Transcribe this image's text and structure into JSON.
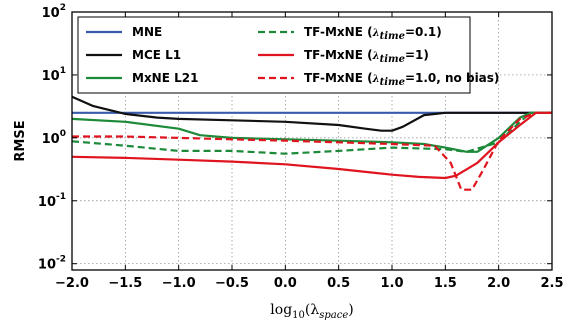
{
  "chart_data": {
    "type": "line",
    "xlabel": "log10(λspace)",
    "xlabel_parts": {
      "pre": "log",
      "sub": "10",
      "mid": "(λ",
      "sub2": "space",
      "post": ")"
    },
    "ylabel": "RMSE",
    "xlim": [
      -2.0,
      2.5
    ],
    "ylim_log10": [
      -2.1,
      2.0
    ],
    "yscale": "log",
    "grid": true,
    "legend_position": "top",
    "x_ticks": [
      "−2.0",
      "−1.5",
      "−1.0",
      "−0.5",
      "0.0",
      "0.5",
      "1.0",
      "1.5",
      "2.0",
      "2.5"
    ],
    "x_tick_values": [
      -2.0,
      -1.5,
      -1.0,
      -0.5,
      0.0,
      0.5,
      1.0,
      1.5,
      2.0,
      2.5
    ],
    "y_ticks": [
      {
        "base": "10",
        "exp": "2",
        "value": 2
      },
      {
        "base": "10",
        "exp": "1",
        "value": 1
      },
      {
        "base": "10",
        "exp": "0",
        "value": 0
      },
      {
        "base": "10",
        "exp": "-1",
        "value": -1
      },
      {
        "base": "10",
        "exp": "-2",
        "value": -2
      }
    ],
    "series": [
      {
        "name": "MNE",
        "label_parts": {
          "pre": "MNE",
          "sub": "",
          "post": ""
        },
        "color": "#3a5ba9",
        "dash": false,
        "x": [
          -2.0,
          -1.5,
          -1.0,
          -0.5,
          0.0,
          0.5,
          1.0,
          1.5,
          2.0,
          2.3,
          2.5
        ],
        "y": [
          2.5,
          2.5,
          2.5,
          2.5,
          2.5,
          2.5,
          2.5,
          2.5,
          2.5,
          2.5,
          2.5
        ]
      },
      {
        "name": "MCE L1",
        "label_parts": {
          "pre": "MCE L1",
          "sub": "",
          "post": ""
        },
        "color": "#111111",
        "dash": false,
        "x": [
          -2.0,
          -1.8,
          -1.5,
          -1.2,
          -1.0,
          -0.5,
          0.0,
          0.5,
          0.75,
          0.9,
          1.0,
          1.1,
          1.3,
          1.5,
          2.0,
          2.3,
          2.5
        ],
        "y": [
          4.5,
          3.2,
          2.4,
          2.1,
          2.0,
          1.9,
          1.8,
          1.6,
          1.4,
          1.3,
          1.3,
          1.5,
          2.3,
          2.5,
          2.5,
          2.5,
          2.5
        ]
      },
      {
        "name": "MxNE L21",
        "label_parts": {
          "pre": "MxNE L21",
          "sub": "",
          "post": ""
        },
        "color": "#1d8a3a",
        "dash": false,
        "x": [
          -2.0,
          -1.5,
          -1.0,
          -0.8,
          -0.5,
          0.0,
          0.5,
          1.0,
          1.3,
          1.5,
          1.7,
          1.8,
          2.0,
          2.2,
          2.3,
          2.5
        ],
        "y": [
          2.0,
          1.8,
          1.4,
          1.1,
          1.0,
          0.95,
          0.9,
          0.85,
          0.8,
          0.7,
          0.6,
          0.6,
          1.0,
          2.1,
          2.5,
          2.5
        ]
      },
      {
        "name": "TF-MxNE (λtime=0.1)",
        "label_parts": {
          "pre": "TF-MxNE (",
          "sub": "λtime",
          "post": "=0.1)"
        },
        "color": "#1d8a3a",
        "dash": true,
        "x": [
          -2.0,
          -1.5,
          -1.0,
          -0.5,
          0.0,
          0.5,
          1.0,
          1.5,
          1.7,
          2.0,
          2.2,
          2.3,
          2.5
        ],
        "y": [
          0.88,
          0.75,
          0.62,
          0.62,
          0.56,
          0.62,
          0.7,
          0.66,
          0.6,
          0.85,
          1.8,
          2.5,
          2.5
        ]
      },
      {
        "name": "TF-MxNE (λtime=1)",
        "label_parts": {
          "pre": "TF-MxNE (",
          "sub": "λtime",
          "post": "=1)"
        },
        "color": "#e0141e",
        "dash": false,
        "x": [
          -2.0,
          -1.5,
          -1.0,
          -0.5,
          0.0,
          0.5,
          1.0,
          1.25,
          1.5,
          1.6,
          1.8,
          2.0,
          2.2,
          2.35,
          2.5
        ],
        "y": [
          0.5,
          0.48,
          0.45,
          0.42,
          0.38,
          0.32,
          0.26,
          0.24,
          0.23,
          0.25,
          0.4,
          0.85,
          1.6,
          2.5,
          2.5
        ]
      },
      {
        "name": "TF-MxNE (λtime=1.0, no bias)",
        "label_parts": {
          "pre": "TF-MxNE (",
          "sub": "λtime",
          "post": "=1.0, no bias)"
        },
        "color": "#e0141e",
        "dash": true,
        "x": [
          -2.0,
          -1.5,
          -1.0,
          -0.5,
          0.0,
          0.5,
          1.0,
          1.4,
          1.55,
          1.65,
          1.75,
          1.85,
          2.0,
          2.2,
          2.35,
          2.5
        ],
        "y": [
          1.05,
          1.05,
          1.0,
          0.95,
          0.9,
          0.85,
          0.8,
          0.75,
          0.4,
          0.15,
          0.15,
          0.3,
          0.9,
          2.0,
          2.5,
          2.5
        ]
      }
    ]
  }
}
